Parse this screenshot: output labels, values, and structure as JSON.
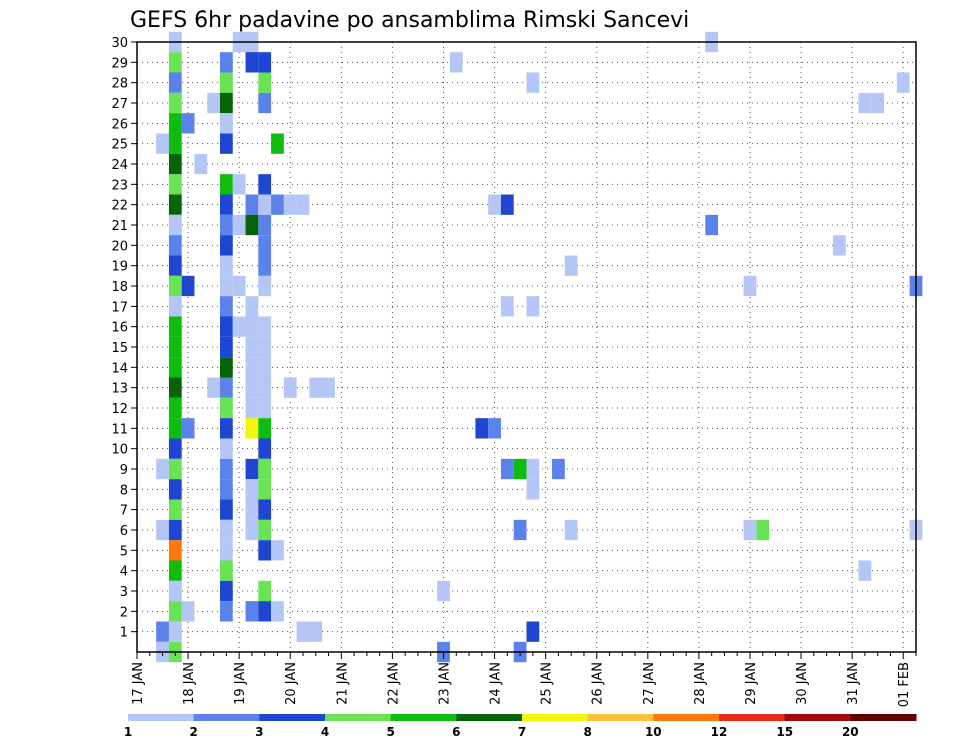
{
  "chart_data": {
    "type": "heatmap",
    "title": "GEFS 6hr padavine po ansamblima Rimski Sancevi",
    "x_tick_labels": [
      "17 JAN",
      "18 JAN",
      "19 JAN",
      "20 JAN",
      "21 JAN",
      "22 JAN",
      "23 JAN",
      "24 JAN",
      "25 JAN",
      "26 JAN",
      "27 JAN",
      "28 JAN",
      "29 JAN",
      "30 JAN",
      "31 JAN",
      "01 FEB"
    ],
    "xlim": [
      0,
      61
    ],
    "ylim": [
      0,
      30
    ],
    "y_ticks": [
      1,
      2,
      3,
      4,
      5,
      6,
      7,
      8,
      9,
      10,
      11,
      12,
      13,
      14,
      15,
      16,
      17,
      18,
      19,
      20,
      21,
      22,
      23,
      24,
      25,
      26,
      27,
      28,
      29,
      30
    ],
    "grid": true,
    "colorbar": {
      "placement": "bottom",
      "labels": [
        "1",
        "2",
        "3",
        "4",
        "5",
        "6",
        "7",
        "8",
        "10",
        "12",
        "15",
        "20"
      ],
      "colors": [
        "#b4c6f5",
        "#5b82eb",
        "#1e46d2",
        "#68e354",
        "#0ebc0e",
        "#066406",
        "#f5f50a",
        "#ffbe3c",
        "#ff780a",
        "#e62d14",
        "#a50a0a",
        "#640000"
      ]
    },
    "cells": [
      [
        3,
        30,
        0
      ],
      [
        8,
        30,
        0
      ],
      [
        9,
        30,
        0
      ],
      [
        45,
        30,
        0
      ],
      [
        3,
        29,
        3
      ],
      [
        7,
        29,
        1
      ],
      [
        9,
        29,
        2
      ],
      [
        10,
        29,
        2
      ],
      [
        25,
        29,
        0
      ],
      [
        3,
        28,
        1
      ],
      [
        7,
        28,
        3
      ],
      [
        10,
        28,
        3
      ],
      [
        31,
        28,
        0
      ],
      [
        60,
        28,
        0
      ],
      [
        3,
        27,
        3
      ],
      [
        6,
        27,
        0
      ],
      [
        7,
        27,
        5
      ],
      [
        10,
        27,
        1
      ],
      [
        57,
        27,
        0
      ],
      [
        58,
        27,
        0
      ],
      [
        3,
        26,
        4
      ],
      [
        4,
        26,
        1
      ],
      [
        7,
        26,
        0
      ],
      [
        2,
        25,
        0
      ],
      [
        3,
        25,
        4
      ],
      [
        7,
        25,
        2
      ],
      [
        11,
        25,
        4
      ],
      [
        3,
        24,
        5
      ],
      [
        5,
        24,
        0
      ],
      [
        3,
        23,
        3
      ],
      [
        7,
        23,
        4
      ],
      [
        8,
        23,
        0
      ],
      [
        10,
        23,
        2
      ],
      [
        3,
        22,
        5
      ],
      [
        7,
        22,
        2
      ],
      [
        9,
        22,
        1
      ],
      [
        10,
        22,
        0
      ],
      [
        11,
        22,
        1
      ],
      [
        12,
        22,
        0
      ],
      [
        13,
        22,
        0
      ],
      [
        28,
        22,
        0
      ],
      [
        29,
        22,
        2
      ],
      [
        3,
        21,
        0
      ],
      [
        7,
        21,
        1
      ],
      [
        8,
        21,
        0
      ],
      [
        9,
        21,
        5
      ],
      [
        10,
        21,
        1
      ],
      [
        45,
        21,
        1
      ],
      [
        3,
        20,
        1
      ],
      [
        7,
        20,
        2
      ],
      [
        10,
        20,
        1
      ],
      [
        55,
        20,
        0
      ],
      [
        3,
        19,
        2
      ],
      [
        7,
        19,
        0
      ],
      [
        10,
        19,
        1
      ],
      [
        34,
        19,
        0
      ],
      [
        3,
        18,
        3
      ],
      [
        4,
        18,
        2
      ],
      [
        7,
        18,
        0
      ],
      [
        8,
        18,
        0
      ],
      [
        10,
        18,
        0
      ],
      [
        48,
        18,
        0
      ],
      [
        61,
        18,
        1
      ],
      [
        3,
        17,
        0
      ],
      [
        7,
        17,
        1
      ],
      [
        9,
        17,
        0
      ],
      [
        29,
        17,
        0
      ],
      [
        31,
        17,
        0
      ],
      [
        3,
        16,
        4
      ],
      [
        7,
        16,
        2
      ],
      [
        8,
        16,
        0
      ],
      [
        9,
        16,
        0
      ],
      [
        10,
        16,
        0
      ],
      [
        3,
        15,
        4
      ],
      [
        7,
        15,
        2
      ],
      [
        9,
        15,
        0
      ],
      [
        10,
        15,
        0
      ],
      [
        3,
        14,
        4
      ],
      [
        7,
        14,
        5
      ],
      [
        9,
        14,
        0
      ],
      [
        10,
        14,
        0
      ],
      [
        3,
        13,
        5
      ],
      [
        6,
        13,
        0
      ],
      [
        7,
        13,
        1
      ],
      [
        9,
        13,
        0
      ],
      [
        10,
        13,
        0
      ],
      [
        12,
        13,
        0
      ],
      [
        14,
        13,
        0
      ],
      [
        15,
        13,
        0
      ],
      [
        3,
        12,
        4
      ],
      [
        7,
        12,
        3
      ],
      [
        9,
        12,
        0
      ],
      [
        10,
        12,
        0
      ],
      [
        3,
        11,
        4
      ],
      [
        4,
        11,
        1
      ],
      [
        7,
        11,
        2
      ],
      [
        9,
        11,
        6
      ],
      [
        10,
        11,
        4
      ],
      [
        27,
        11,
        2
      ],
      [
        28,
        11,
        1
      ],
      [
        3,
        10,
        2
      ],
      [
        7,
        10,
        0
      ],
      [
        10,
        10,
        2
      ],
      [
        2,
        9,
        0
      ],
      [
        3,
        9,
        3
      ],
      [
        7,
        9,
        1
      ],
      [
        9,
        9,
        2
      ],
      [
        10,
        9,
        3
      ],
      [
        29,
        9,
        1
      ],
      [
        30,
        9,
        4
      ],
      [
        31,
        9,
        0
      ],
      [
        33,
        9,
        1
      ],
      [
        3,
        8,
        2
      ],
      [
        7,
        8,
        1
      ],
      [
        9,
        8,
        0
      ],
      [
        10,
        8,
        3
      ],
      [
        31,
        8,
        0
      ],
      [
        3,
        7,
        3
      ],
      [
        7,
        7,
        2
      ],
      [
        9,
        7,
        0
      ],
      [
        10,
        7,
        2
      ],
      [
        2,
        6,
        0
      ],
      [
        3,
        6,
        2
      ],
      [
        7,
        6,
        0
      ],
      [
        9,
        6,
        0
      ],
      [
        10,
        6,
        3
      ],
      [
        30,
        6,
        1
      ],
      [
        34,
        6,
        0
      ],
      [
        48,
        6,
        0
      ],
      [
        49,
        6,
        3
      ],
      [
        61,
        6,
        0
      ],
      [
        3,
        5,
        8
      ],
      [
        7,
        5,
        0
      ],
      [
        10,
        5,
        2
      ],
      [
        11,
        5,
        0
      ],
      [
        3,
        4,
        4
      ],
      [
        7,
        4,
        3
      ],
      [
        57,
        4,
        0
      ],
      [
        3,
        3,
        0
      ],
      [
        7,
        3,
        2
      ],
      [
        10,
        3,
        3
      ],
      [
        24,
        3,
        0
      ],
      [
        3,
        2,
        3
      ],
      [
        4,
        2,
        0
      ],
      [
        7,
        2,
        1
      ],
      [
        9,
        2,
        1
      ],
      [
        10,
        2,
        2
      ],
      [
        11,
        2,
        0
      ],
      [
        2,
        1,
        1
      ],
      [
        3,
        1,
        0
      ],
      [
        13,
        1,
        0
      ],
      [
        14,
        1,
        0
      ],
      [
        31,
        1,
        2
      ],
      [
        2,
        0,
        0
      ],
      [
        3,
        0,
        3
      ],
      [
        24,
        0,
        1
      ],
      [
        30,
        0,
        1
      ]
    ]
  }
}
